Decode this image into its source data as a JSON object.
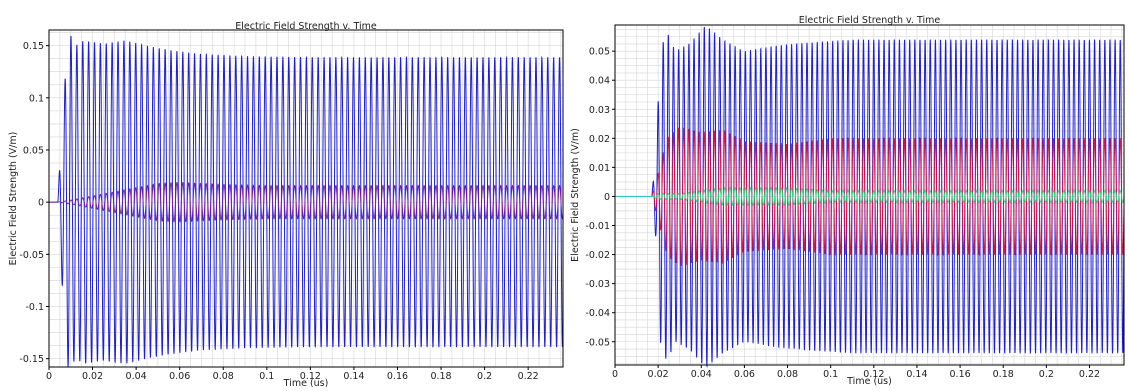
{
  "colors": {
    "series_blue": "#1f1fd6",
    "series_red": "#d8134a",
    "series_purple": "#7a1fa0",
    "series_green": "#22e07a",
    "series_cyan": "#2ec6c6",
    "grid": "#d6d6d6",
    "axis": "#000000",
    "background": "#ffffff"
  },
  "chart_data": [
    {
      "type": "line",
      "title": "Electric Field Strength v. Time",
      "xlabel": "Time (us)",
      "ylabel": "Electric Field Strength (V/m)",
      "xlim": [
        0,
        0.236
      ],
      "ylim": [
        -0.158,
        0.165
      ],
      "xticks": [
        0,
        0.02,
        0.04,
        0.06,
        0.08,
        0.1,
        0.12,
        0.14,
        0.16,
        0.18,
        0.2,
        0.22
      ],
      "xtick_labels": [
        "0",
        "0.02",
        "0.04",
        "0.06",
        "0.08",
        "0.1",
        "0.12",
        "0.14",
        "0.16",
        "0.18",
        "0.2",
        "0.22"
      ],
      "yticks": [
        -0.15,
        -0.1,
        -0.05,
        0,
        0.05,
        0.1,
        0.15
      ],
      "ytick_labels": [
        "-0.15",
        "-0.1",
        "-0.05",
        "0",
        "0.05",
        "0.1",
        "0.15"
      ],
      "grid": true,
      "legend": "none",
      "series": [
        {
          "color": "#1f1fd6",
          "style": "oscillation",
          "frequency_cycles_per_us": 370,
          "onset_us": 0.004,
          "envelope_t": [
            0,
            0.004,
            0.006,
            0.009,
            0.012,
            0.016,
            0.025,
            0.035,
            0.045,
            0.055,
            0.07,
            0.09,
            0.12,
            0.236
          ],
          "envelope_v": [
            0,
            0,
            0.078,
            0.165,
            0.15,
            0.155,
            0.152,
            0.155,
            0.15,
            0.146,
            0.142,
            0.14,
            0.139,
            0.139
          ]
        },
        {
          "color": "#7a1fa0",
          "style": "oscillation",
          "frequency_cycles_per_us": 370,
          "onset_us": 0.004,
          "envelope_t": [
            0,
            0.004,
            0.01,
            0.02,
            0.035,
            0.05,
            0.06,
            0.08,
            0.1,
            0.236
          ],
          "envelope_v": [
            0,
            0,
            0.002,
            0.006,
            0.012,
            0.018,
            0.019,
            0.017,
            0.016,
            0.016
          ]
        }
      ]
    },
    {
      "type": "line",
      "title": "Electric Field Strength v. Time",
      "xlabel": "Time (us)",
      "ylabel": "Electric Field Strength (V/m)",
      "xlim": [
        0,
        0.236
      ],
      "ylim": [
        -0.058,
        0.059
      ],
      "xticks": [
        0,
        0.02,
        0.04,
        0.06,
        0.08,
        0.1,
        0.12,
        0.14,
        0.16,
        0.18,
        0.2,
        0.22
      ],
      "xtick_labels": [
        "0",
        "0.02",
        "0.04",
        "0.06",
        "0.08",
        "0.1",
        "0.12",
        "0.14",
        "0.16",
        "0.18",
        "0.2",
        "0.22"
      ],
      "yticks": [
        -0.05,
        -0.04,
        -0.03,
        -0.02,
        -0.01,
        0,
        0.01,
        0.02,
        0.03,
        0.04,
        0.05
      ],
      "ytick_labels": [
        "-0.05",
        "-0.04",
        "-0.03",
        "-0.02",
        "-0.01",
        "0",
        "0.01",
        "0.02",
        "0.03",
        "0.04",
        "0.05"
      ],
      "grid": true,
      "legend": "none",
      "series": [
        {
          "color": "#1f1fd6",
          "style": "oscillation",
          "frequency_cycles_per_us": 420,
          "onset_us": 0.017,
          "envelope_t": [
            0,
            0.017,
            0.019,
            0.021,
            0.024,
            0.028,
            0.035,
            0.042,
            0.05,
            0.06,
            0.075,
            0.09,
            0.11,
            0.236
          ],
          "envelope_v": [
            0,
            0,
            0.015,
            0.05,
            0.057,
            0.05,
            0.053,
            0.059,
            0.054,
            0.05,
            0.052,
            0.053,
            0.054,
            0.054
          ]
        },
        {
          "color": "#d8134a",
          "style": "oscillation",
          "frequency_cycles_per_us": 420,
          "onset_us": 0.017,
          "envelope_t": [
            0,
            0.017,
            0.02,
            0.024,
            0.03,
            0.04,
            0.05,
            0.06,
            0.08,
            0.1,
            0.236
          ],
          "envelope_v": [
            0,
            0,
            0.008,
            0.02,
            0.024,
            0.022,
            0.023,
            0.019,
            0.018,
            0.02,
            0.02
          ]
        },
        {
          "color": "#22e07a",
          "style": "oscillation",
          "frequency_cycles_per_us": 420,
          "onset_us": 0.017,
          "envelope_t": [
            0,
            0.017,
            0.02,
            0.03,
            0.05,
            0.07,
            0.08,
            0.1,
            0.236
          ],
          "envelope_v": [
            0,
            0,
            0.001,
            0.001,
            0.003,
            0.003,
            0.003,
            0.002,
            0.002
          ]
        },
        {
          "color": "#2ec6c6",
          "style": "baseline",
          "t": [
            0,
            0.017
          ],
          "v": [
            0,
            0
          ]
        }
      ]
    }
  ]
}
